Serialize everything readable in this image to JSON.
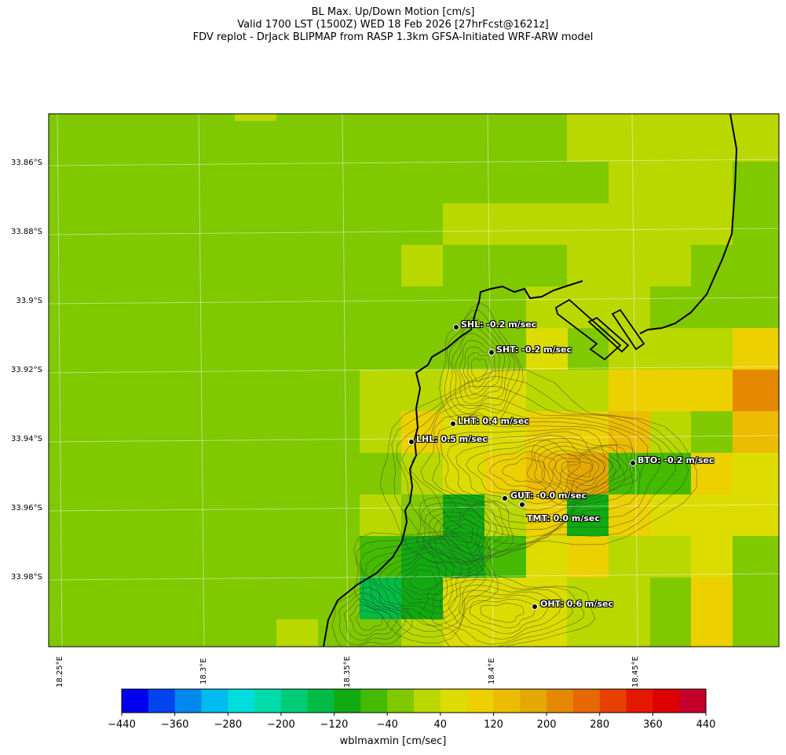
{
  "title": {
    "line1": "BL Max. Up/Down Motion [cm/s]",
    "line2": "Valid 1700 LST (1500Z) WED 18 Feb 2026 [27hrFcst@1621z]",
    "line3": "FDV replot - DrJack BLIPMAP from RASP 1.3km GFSA-Initiated WRF-ARW model"
  },
  "axes": {
    "lat_labels": [
      "33.86°S",
      "33.88°S",
      "33.9°S",
      "33.92°S",
      "33.94°S",
      "33.96°S",
      "33.98°S"
    ],
    "lon_labels": [
      "18.25°E",
      "18.3°E",
      "18.35°E",
      "18.4°E",
      "18.45°E"
    ]
  },
  "stations": [
    {
      "label": "SHL: -0.2 m/sec"
    },
    {
      "label": "SHT: -0.2 m/sec"
    },
    {
      "label": "LHT: 0.4 m/sec"
    },
    {
      "label": "LHL: 0.5 m/sec"
    },
    {
      "label": "BTO: -0.2 m/sec"
    },
    {
      "label": "GUT: -0.0 m/sec"
    },
    {
      "label": "TMT: 0.0 m/sec"
    },
    {
      "label": "OHT: 0.6 m/sec"
    }
  ],
  "colorbar": {
    "label": "wblmaxmin [cm/sec]",
    "ticks": [
      "−440",
      "−360",
      "−280",
      "−200",
      "−120",
      "−40",
      "40",
      "120",
      "200",
      "280",
      "360",
      "440"
    ],
    "colors": [
      "#0000ee",
      "#0044ee",
      "#0088ee",
      "#00bbee",
      "#00dddd",
      "#00ddaa",
      "#00cc77",
      "#00bb44",
      "#11aa11",
      "#44bb00",
      "#80c800",
      "#b8d800",
      "#dcdc00",
      "#ecd000",
      "#ecbc00",
      "#e4a800",
      "#e68800",
      "#e86800",
      "#e84000",
      "#e41800",
      "#dc0000",
      "#c4002a"
    ]
  },
  "background_color": "#80c800"
}
